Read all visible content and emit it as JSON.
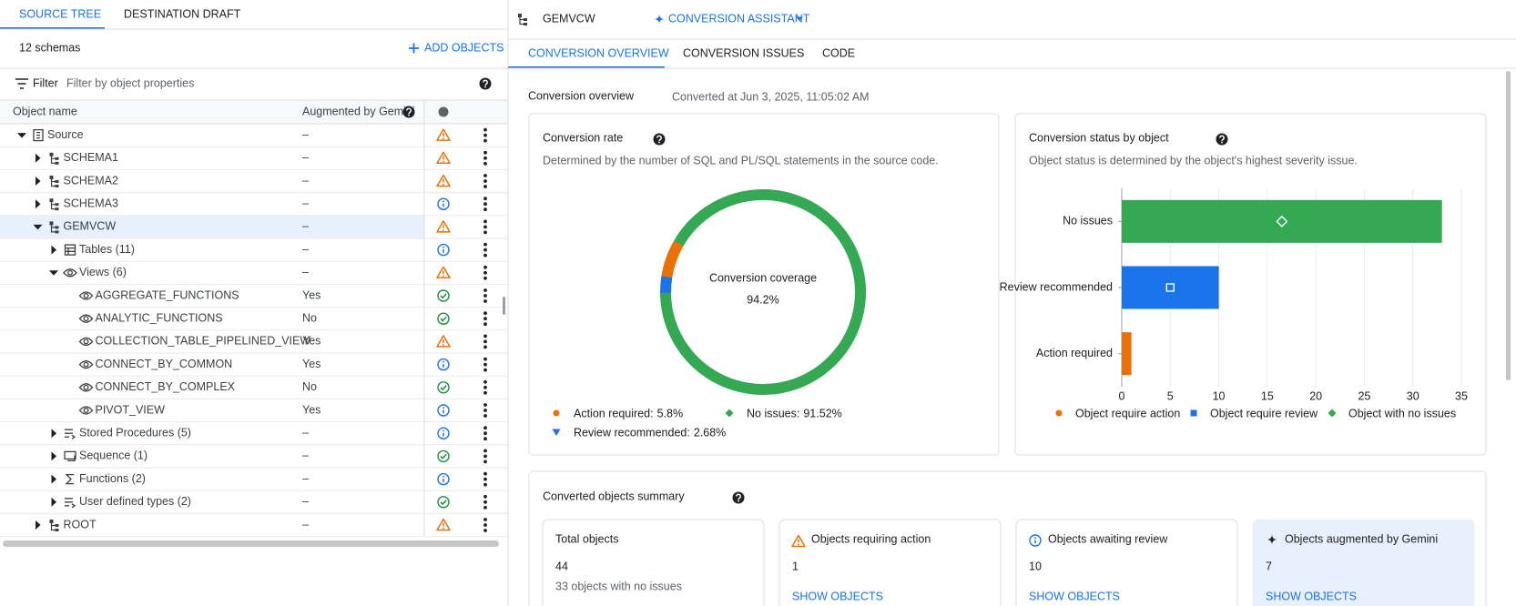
{
  "left_panel": {
    "tabs": [
      "SOURCE TREE",
      "DESTINATION DRAFT"
    ],
    "schema_count": "12 schemas",
    "add_objects": "ADD OBJECTS",
    "filter_label": "Filter",
    "filter_placeholder": "Filter by object properties",
    "columns": [
      "Object name",
      "Augmented by Gemini"
    ],
    "tree": [
      {
        "name": "Source",
        "kind": "database",
        "expander": "open",
        "gemini": "–",
        "status": "warning"
      },
      {
        "name": "SCHEMA1",
        "kind": "schema",
        "expander": "closed",
        "gemini": "–",
        "status": "warning"
      },
      {
        "name": "SCHEMA2",
        "kind": "schema",
        "expander": "closed",
        "gemini": "–",
        "status": "warning"
      },
      {
        "name": "SCHEMA3",
        "kind": "schema",
        "expander": "closed",
        "gemini": "–",
        "status": "info"
      },
      {
        "name": "GEMVCW",
        "kind": "schema",
        "expander": "open",
        "gemini": "–",
        "status": "warning",
        "selected": true
      },
      {
        "name": "Tables (11)",
        "kind": "table-folder",
        "expander": "closed",
        "gemini": "–",
        "status": "info"
      },
      {
        "name": "Views (6)",
        "kind": "view-folder",
        "expander": "open",
        "gemini": "–",
        "status": "warning"
      },
      {
        "name": "AGGREGATE_FUNCTIONS",
        "kind": "view",
        "expander": "none",
        "gemini": "Yes",
        "status": "ok"
      },
      {
        "name": "ANALYTIC_FUNCTIONS",
        "kind": "view",
        "expander": "none",
        "gemini": "No",
        "status": "ok"
      },
      {
        "name": "COLLECTION_TABLE_PIPELINED_VIEW",
        "kind": "view",
        "expander": "none",
        "gemini": "Yes",
        "status": "warning"
      },
      {
        "name": "CONNECT_BY_COMMON",
        "kind": "view",
        "expander": "none",
        "gemini": "Yes",
        "status": "info"
      },
      {
        "name": "CONNECT_BY_COMPLEX",
        "kind": "view",
        "expander": "none",
        "gemini": "No",
        "status": "ok"
      },
      {
        "name": "PIVOT_VIEW",
        "kind": "view",
        "expander": "none",
        "gemini": "Yes",
        "status": "info"
      },
      {
        "name": "Stored Procedures (5)",
        "kind": "procedure-folder",
        "expander": "closed",
        "gemini": "–",
        "status": "info"
      },
      {
        "name": "Sequence (1)",
        "kind": "sequence-folder",
        "expander": "closed",
        "gemini": "–",
        "status": "ok"
      },
      {
        "name": "Functions (2)",
        "kind": "function-folder",
        "expander": "closed",
        "gemini": "–",
        "status": "info"
      },
      {
        "name": "User defined types (2)",
        "kind": "type-folder",
        "expander": "closed",
        "gemini": "–",
        "status": "ok"
      },
      {
        "name": "ROOT",
        "kind": "schema",
        "expander": "closed",
        "gemini": "–",
        "status": "warning"
      }
    ]
  },
  "header": {
    "title": "GEMVCW",
    "assistant": "CONVERSION ASSISTANT",
    "tabs": [
      "CONVERSION OVERVIEW",
      "CONVERSION ISSUES",
      "CODE"
    ]
  },
  "overview": {
    "title": "Conversion overview",
    "converted_at": "Converted at Jun 3, 2025, 11:05:02 AM",
    "rate_card": {
      "title": "Conversion rate",
      "subtitle": "Determined by the number of SQL and PL/SQL statements in the source code."
    },
    "status_card": {
      "title": "Conversion status by object",
      "subtitle": "Object status is determined by the object's highest severity issue."
    }
  },
  "chart_data": [
    {
      "type": "donut",
      "center_label": "Conversion coverage",
      "center_value": "94.2%",
      "categories": [
        "Action required:",
        "Review recommended:",
        "No issues:"
      ],
      "values": [
        5.8,
        2.68,
        91.52
      ],
      "value_labels": [
        "5.8%",
        "2.68%",
        "91.52%"
      ],
      "colors": [
        "#e8710a",
        "#1a73e8",
        "#34a853"
      ],
      "markers": [
        "circle",
        "triangle",
        "diamond"
      ]
    },
    {
      "type": "bar",
      "orientation": "horizontal",
      "categories": [
        "No issues",
        "Review recommended",
        "Action required"
      ],
      "values": [
        33,
        10,
        1
      ],
      "colors": [
        "#34a853",
        "#1a73e8",
        "#e8710a"
      ],
      "xlim": [
        0,
        35
      ],
      "xticks": [
        0,
        5,
        10,
        15,
        20,
        25,
        30,
        35
      ],
      "grid": true,
      "legend": [
        {
          "name": "Object require action",
          "color": "#e8710a",
          "marker": "circle"
        },
        {
          "name": "Object require review",
          "color": "#1a73e8",
          "marker": "square"
        },
        {
          "name": "Object with no issues",
          "color": "#34a853",
          "marker": "diamond"
        }
      ]
    }
  ],
  "summary": {
    "title": "Converted objects summary",
    "cards": [
      {
        "title": "Total objects",
        "value": 44,
        "note": "33 objects with no issues"
      },
      {
        "title": "Objects requiring action",
        "value": 1,
        "link": "SHOW OBJECTS",
        "icon": "warning"
      },
      {
        "title": "Objects awaiting review",
        "value": 10,
        "link": "SHOW OBJECTS",
        "icon": "info"
      },
      {
        "title": "Objects augmented by Gemini",
        "value": 7,
        "link": "SHOW OBJECTS",
        "icon": "gemini",
        "highlight": true
      }
    ]
  }
}
